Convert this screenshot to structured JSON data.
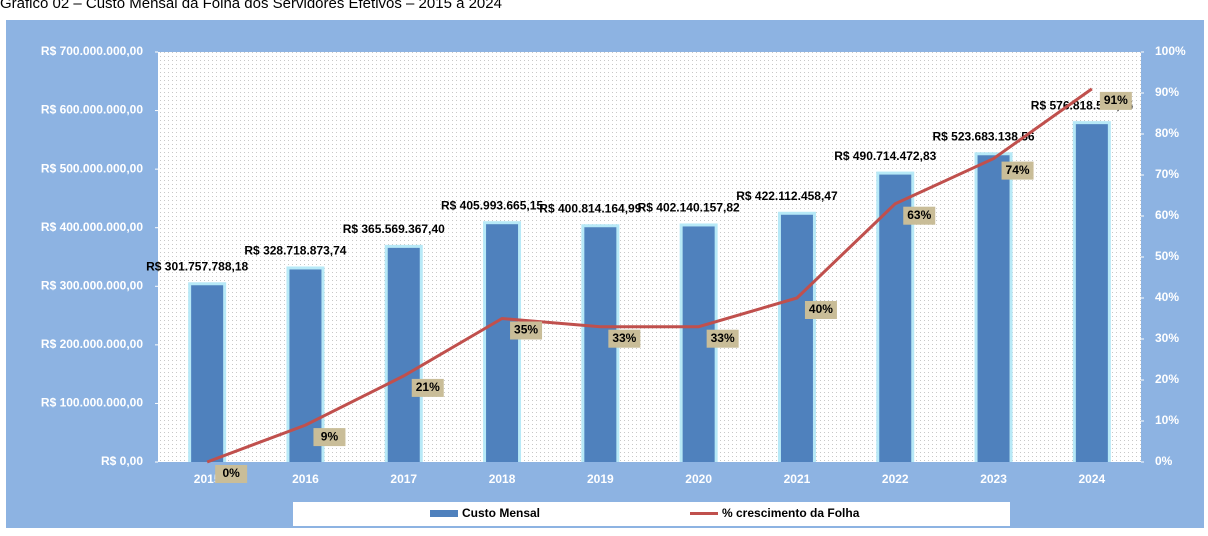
{
  "chart_data": {
    "type": "bar",
    "title": "Gráfico 02 – Custo Mensal da Folha dos Servidores Efetivos – 2015 a 2024",
    "categories": [
      "2015",
      "2016",
      "2017",
      "2018",
      "2019",
      "2020",
      "2021",
      "2022",
      "2023",
      "2024"
    ],
    "series": [
      {
        "name": "Custo Mensal",
        "type": "bar",
        "color": "#4f81bd",
        "values": [
          301757788.18,
          328718873.74,
          365569367.4,
          405993665.15,
          400814164.99,
          402140157.82,
          422112458.47,
          490714472.83,
          523683138.56,
          576818562.35
        ],
        "value_labels": [
          "R$ 301.757.788,18",
          "R$ 328.718.873,74",
          "R$ 365.569.367,40",
          "R$ 405.993.665,15",
          "R$ 400.814.164,99",
          "R$ 402.140.157,82",
          "R$ 422.112.458,47",
          "R$ 490.714.472,83",
          "R$ 523.683.138,56",
          "R$ 576.818.562,35"
        ]
      },
      {
        "name": "% crescimento da Folha",
        "type": "line",
        "axis": "y2",
        "color": "#c0504d",
        "values": [
          0,
          9,
          21,
          35,
          33,
          33,
          40,
          63,
          74,
          91
        ],
        "value_labels": [
          "0%",
          "9%",
          "21%",
          "35%",
          "33%",
          "33%",
          "40%",
          "63%",
          "74%",
          "91%"
        ]
      }
    ],
    "ylim": [
      0,
      700000000
    ],
    "yticks": [
      {
        "value": 0,
        "label": "R$ 0,00"
      },
      {
        "value": 100000000,
        "label": "R$ 100.000.000,00"
      },
      {
        "value": 200000000,
        "label": "R$ 200.000.000,00"
      },
      {
        "value": 300000000,
        "label": "R$ 300.000.000,00"
      },
      {
        "value": 400000000,
        "label": "R$ 400.000.000,00"
      },
      {
        "value": 500000000,
        "label": "R$ 500.000.000,00"
      },
      {
        "value": 600000000,
        "label": "R$ 600.000.000,00"
      },
      {
        "value": 700000000,
        "label": "R$ 700.000.000,00"
      }
    ],
    "y2lim": [
      0,
      100
    ],
    "y2ticks": [
      {
        "value": 0,
        "label": "0%"
      },
      {
        "value": 10,
        "label": "10%"
      },
      {
        "value": 20,
        "label": "20%"
      },
      {
        "value": 30,
        "label": "30%"
      },
      {
        "value": 40,
        "label": "40%"
      },
      {
        "value": 50,
        "label": "50%"
      },
      {
        "value": 60,
        "label": "60%"
      },
      {
        "value": 70,
        "label": "70%"
      },
      {
        "value": 80,
        "label": "80%"
      },
      {
        "value": 90,
        "label": "90%"
      },
      {
        "value": 100,
        "label": "100%"
      }
    ],
    "legend": "bottom"
  }
}
